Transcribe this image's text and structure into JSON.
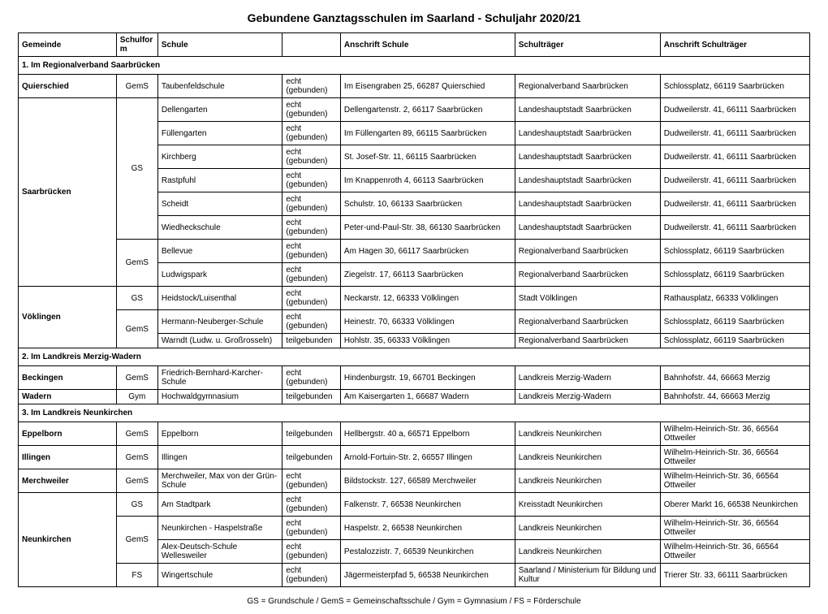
{
  "title": "Gebundene Ganztagsschulen im Saarland - Schuljahr 2020/21",
  "legend": "GS = Grundschule / GemS = Gemeinschaftsschule / Gym = Gymnasium / FS = Förderschule",
  "headers": {
    "gemeinde": "Gemeinde",
    "schulform": "Schulform",
    "schule": "Schule",
    "anschrift_schule": "Anschrift Schule",
    "schultraeger": "Schulträger",
    "anschrift_schultraeger": "Anschrift Schulträger"
  },
  "sections": {
    "s1": "1. Im Regionalverband Saarbrücken",
    "s2": "2. Im Landkreis Merzig-Wadern",
    "s3": "3. Im Landkreis Neunkirchen"
  },
  "groups": {
    "quierschied": "Quierschied",
    "saarbruecken": "Saarbrücken",
    "voeklingen": "Vöklingen",
    "beckingen": "Beckingen",
    "wadern": "Wadern",
    "eppelborn": "Eppelborn",
    "illingen": "Illingen",
    "merchweiler": "Merchweiler",
    "neunkirchen": "Neunkirchen"
  },
  "sf": {
    "gems": "GemS",
    "gs": "GS",
    "gym": "Gym",
    "fs": "FS"
  },
  "typ": {
    "echt": "echt (gebunden)",
    "teil": "teilgebunden"
  },
  "rows": {
    "r1": {
      "schule": "Taubenfeldschule",
      "anschrift": "Im Eisengraben 25, 66287 Quierschied",
      "traeger": "Regionalverband Saarbrücken",
      "tanschrift": "Schlossplatz, 66119 Saarbrücken"
    },
    "r2": {
      "schule": "Dellengarten",
      "anschrift": "Dellengartenstr. 2, 66117 Saarbrücken",
      "traeger": "Landeshauptstadt Saarbrücken",
      "tanschrift": "Dudweilerstr. 41, 66111 Saarbrücken"
    },
    "r3": {
      "schule": "Füllengarten",
      "anschrift": "Im Füllengarten 89, 66115 Saarbrücken",
      "traeger": "Landeshauptstadt Saarbrücken",
      "tanschrift": "Dudweilerstr. 41, 66111 Saarbrücken"
    },
    "r4": {
      "schule": "Kirchberg",
      "anschrift": "St. Josef-Str. 11, 66115 Saarbrücken",
      "traeger": "Landeshauptstadt Saarbrücken",
      "tanschrift": "Dudweilerstr. 41, 66111 Saarbrücken"
    },
    "r5": {
      "schule": "Rastpfuhl",
      "anschrift": "Im Knappenroth 4, 66113 Saarbrücken",
      "traeger": "Landeshauptstadt Saarbrücken",
      "tanschrift": "Dudweilerstr. 41, 66111 Saarbrücken"
    },
    "r6": {
      "schule": "Scheidt",
      "anschrift": "Schulstr. 10, 66133 Saarbrücken",
      "traeger": "Landeshauptstadt Saarbrücken",
      "tanschrift": "Dudweilerstr. 41, 66111 Saarbrücken"
    },
    "r7": {
      "schule": "Wiedheckschule",
      "anschrift": "Peter-und-Paul-Str. 38, 66130 Saarbrücken",
      "traeger": "Landeshauptstadt Saarbrücken",
      "tanschrift": "Dudweilerstr. 41, 66111 Saarbrücken"
    },
    "r8": {
      "schule": "Bellevue",
      "anschrift": "Am Hagen 30, 66117 Saarbrücken",
      "traeger": "Regionalverband Saarbrücken",
      "tanschrift": "Schlossplatz, 66119 Saarbrücken"
    },
    "r9": {
      "schule": "Ludwigspark",
      "anschrift": "Ziegelstr. 17, 66113 Saarbrücken",
      "traeger": "Regionalverband Saarbrücken",
      "tanschrift": "Schlossplatz, 66119 Saarbrücken"
    },
    "r10": {
      "schule": "Heidstock/Luisenthal",
      "anschrift": "Neckarstr. 12, 66333 Völklingen",
      "traeger": "Stadt Völklingen",
      "tanschrift": "Rathausplatz, 66333 Völklingen"
    },
    "r11": {
      "schule": "Hermann-Neuberger-Schule",
      "anschrift": "Heinestr. 70, 66333 Völklingen",
      "traeger": "Regionalverband Saarbrücken",
      "tanschrift": "Schlossplatz, 66119 Saarbrücken"
    },
    "r12": {
      "schule": "Warndt (Ludw. u. Großrosseln)",
      "anschrift": "Hohlstr. 35, 66333 Völklingen",
      "traeger": "Regionalverband Saarbrücken",
      "tanschrift": "Schlossplatz, 66119 Saarbrücken"
    },
    "r13": {
      "schule": "Friedrich-Bernhard-Karcher-Schule",
      "anschrift": "Hindenburgstr. 19, 66701 Beckingen",
      "traeger": "Landkreis Merzig-Wadern",
      "tanschrift": "Bahnhofstr. 44, 66663 Merzig"
    },
    "r14": {
      "schule": "Hochwaldgymnasium",
      "anschrift": "Am Kaisergarten 1, 66687 Wadern",
      "traeger": "Landkreis Merzig-Wadern",
      "tanschrift": "Bahnhofstr. 44, 66663 Merzig"
    },
    "r15": {
      "schule": "Eppelborn",
      "anschrift": "Hellbergstr. 40 a, 66571 Eppelborn",
      "traeger": "Landkreis Neunkirchen",
      "tanschrift": "Wilhelm-Heinrich-Str. 36, 66564 Ottweiler"
    },
    "r16": {
      "schule": "Illingen",
      "anschrift": "Arnold-Fortuin-Str. 2, 66557 Illingen",
      "traeger": "Landkreis Neunkirchen",
      "tanschrift": "Wilhelm-Heinrich-Str. 36, 66564 Ottweiler"
    },
    "r17": {
      "schule": "Merchweiler, Max von der Grün-Schule",
      "anschrift": "Bildstockstr. 127, 66589 Merchweiler",
      "traeger": "Landkreis Neunkirchen",
      "tanschrift": "Wilhelm-Heinrich-Str. 36, 66564 Ottweiler"
    },
    "r18": {
      "schule": "Am Stadtpark",
      "anschrift": "Falkenstr. 7, 66538 Neunkirchen",
      "traeger": "Kreisstadt Neunkirchen",
      "tanschrift": "Oberer Markt 16, 66538 Neunkirchen"
    },
    "r19": {
      "schule": "Neunkirchen - Haspelstraße",
      "anschrift": "Haspelstr. 2, 66538 Neunkirchen",
      "traeger": "Landkreis Neunkirchen",
      "tanschrift": "Wilhelm-Heinrich-Str. 36, 66564 Ottweiler"
    },
    "r20": {
      "schule": "Alex-Deutsch-Schule Wellesweiler",
      "anschrift": "Pestalozzistr. 7, 66539 Neunkirchen",
      "traeger": "Landkreis Neunkirchen",
      "tanschrift": "Wilhelm-Heinrich-Str. 36, 66564 Ottweiler"
    },
    "r21": {
      "schule": "Wingertschule",
      "anschrift": "Jägermeisterpfad 5, 66538 Neunkirchen",
      "traeger": "Saarland / Ministerium für Bildung und Kultur",
      "tanschrift": "Trierer Str. 33, 66111 Saarbrücken"
    }
  }
}
